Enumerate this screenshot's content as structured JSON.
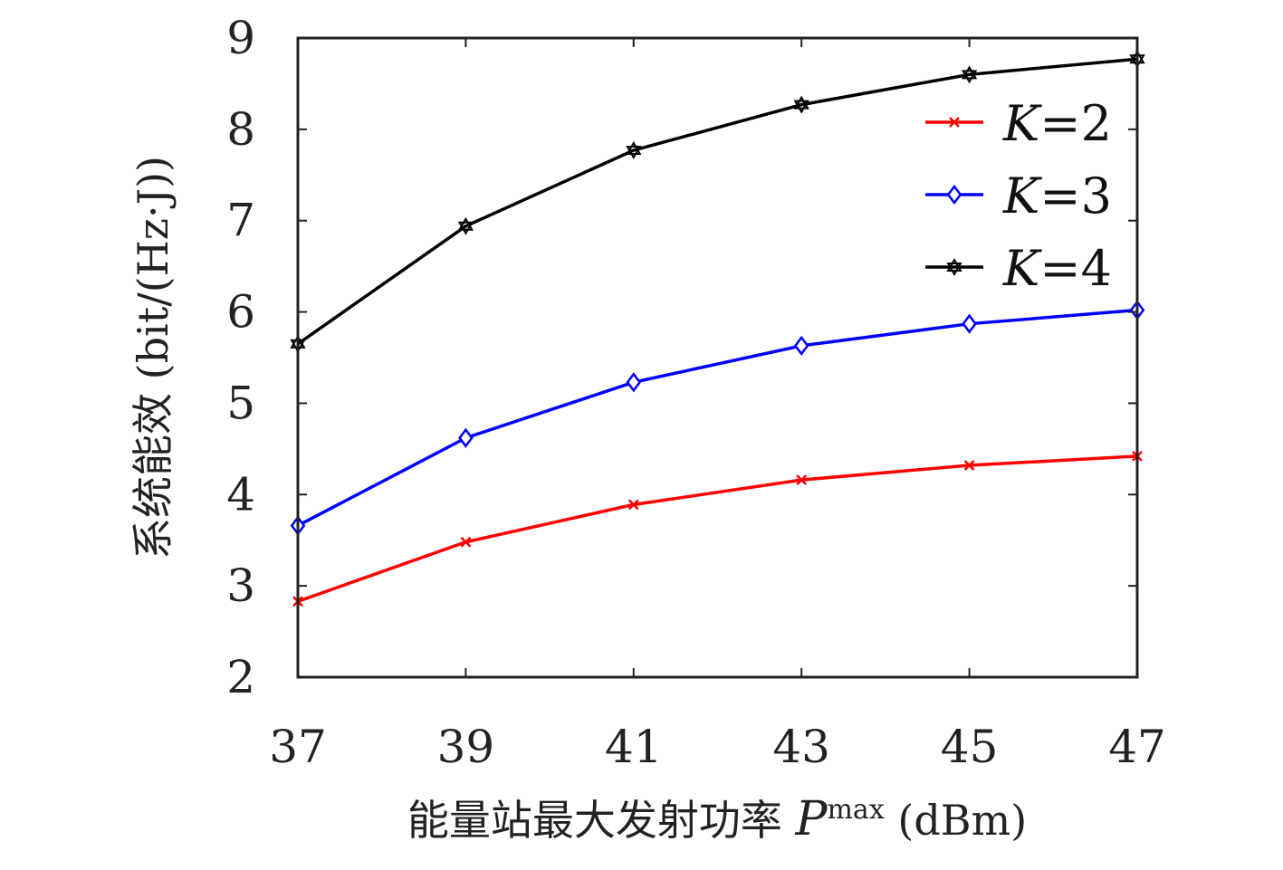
{
  "chart_data": {
    "type": "line",
    "title": "",
    "xlabel": {
      "prefix": "能量站最大发射功率 ",
      "var": "P",
      "sup": "max",
      "suffix": " (dBm)"
    },
    "ylabel": "系统能效 (bit/(Hz·J))",
    "x": [
      37,
      39,
      41,
      43,
      45,
      47
    ],
    "xticks": [
      "37",
      "39",
      "41",
      "43",
      "45",
      "47"
    ],
    "yticks": [
      "2",
      "3",
      "4",
      "5",
      "6",
      "7",
      "8",
      "9"
    ],
    "xlim": [
      37,
      47
    ],
    "ylim": [
      2,
      9
    ],
    "grid": false,
    "legend_position": "top-right",
    "series": [
      {
        "name": "K=2",
        "var": "K",
        "eq": "=2",
        "color": "#ff0000",
        "marker": "x",
        "values": [
          2.83,
          3.48,
          3.89,
          4.16,
          4.32,
          4.42
        ]
      },
      {
        "name": "K=3",
        "var": "K",
        "eq": "=3",
        "color": "#0000ff",
        "marker": "diamond",
        "values": [
          3.66,
          4.62,
          5.23,
          5.63,
          5.87,
          6.02
        ]
      },
      {
        "name": "K=4",
        "var": "K",
        "eq": "=4",
        "color": "#000000",
        "marker": "hexagram",
        "values": [
          5.65,
          6.94,
          7.77,
          8.27,
          8.6,
          8.77
        ]
      }
    ]
  }
}
